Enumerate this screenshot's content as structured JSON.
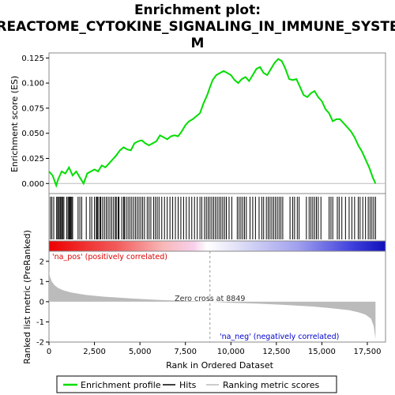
{
  "chart_data": {
    "type": "line",
    "title_lines": [
      "Enrichment plot:",
      "REACTOME_CYTOKINE_SIGNALING_IN_IMMUNE_SYSTE",
      "M"
    ],
    "xlabel": "Rank in Ordered Dataset",
    "xlim": [
      0,
      18500
    ],
    "x_ticks": [
      0,
      2500,
      5000,
      7500,
      10000,
      12500,
      15000,
      17500
    ],
    "x_tick_labels": [
      "0",
      "2,500",
      "5,000",
      "7,500",
      "10,000",
      "12,500",
      "15,000",
      "17,500"
    ],
    "es_panel": {
      "ylabel": "Enrichment score (ES)",
      "ylim": [
        -0.01,
        0.13
      ],
      "y_ticks": [
        0.0,
        0.025,
        0.05,
        0.075,
        0.1,
        0.125
      ],
      "y_tick_labels": [
        "0.000",
        "0.025",
        "0.050",
        "0.075",
        "0.100",
        "0.125"
      ],
      "series": [
        {
          "color": "#00dd00",
          "x": [
            0,
            200,
            400,
            500,
            700,
            900,
            1100,
            1300,
            1500,
            1700,
            1900,
            2100,
            2300,
            2500,
            2700,
            2900,
            3100,
            3300,
            3500,
            3700,
            3900,
            4100,
            4300,
            4500,
            4700,
            4900,
            5100,
            5300,
            5500,
            5700,
            5900,
            6100,
            6300,
            6500,
            6700,
            6900,
            7100,
            7300,
            7500,
            7700,
            7900,
            8100,
            8300,
            8500,
            8700,
            8850,
            9000,
            9200,
            9400,
            9600,
            9800,
            10000,
            10200,
            10400,
            10600,
            10800,
            11000,
            11200,
            11400,
            11600,
            11800,
            12000,
            12200,
            12400,
            12600,
            12800,
            13000,
            13200,
            13400,
            13600,
            13800,
            14000,
            14200,
            14400,
            14600,
            14800,
            15000,
            15200,
            15400,
            15600,
            15800,
            16000,
            16200,
            16400,
            16600,
            16800,
            17000,
            17200,
            17400,
            17600,
            17800,
            17950
          ],
          "y": [
            0.012,
            0.008,
            -0.002,
            0.004,
            0.012,
            0.01,
            0.016,
            0.008,
            0.012,
            0.006,
            0.0,
            0.01,
            0.012,
            0.014,
            0.012,
            0.018,
            0.016,
            0.02,
            0.024,
            0.028,
            0.033,
            0.036,
            0.034,
            0.033,
            0.04,
            0.042,
            0.043,
            0.04,
            0.038,
            0.04,
            0.042,
            0.048,
            0.046,
            0.044,
            0.047,
            0.048,
            0.047,
            0.052,
            0.058,
            0.062,
            0.064,
            0.067,
            0.07,
            0.08,
            0.088,
            0.096,
            0.103,
            0.108,
            0.11,
            0.112,
            0.11,
            0.108,
            0.103,
            0.1,
            0.104,
            0.106,
            0.102,
            0.108,
            0.114,
            0.116,
            0.11,
            0.108,
            0.114,
            0.12,
            0.124,
            0.122,
            0.114,
            0.104,
            0.103,
            0.104,
            0.096,
            0.088,
            0.086,
            0.09,
            0.092,
            0.086,
            0.082,
            0.074,
            0.07,
            0.062,
            0.064,
            0.064,
            0.06,
            0.056,
            0.052,
            0.046,
            0.038,
            0.032,
            0.024,
            0.016,
            0.006,
            0.0
          ]
        }
      ]
    },
    "ranked_panel": {
      "ylabel": "Ranked list metric (PreRanked)",
      "ylim": [
        -2,
        2.5
      ],
      "y_ticks": [
        -2,
        -1,
        0,
        1,
        2
      ],
      "y_tick_labels": [
        "-2",
        "-1",
        "0",
        "1",
        "2"
      ],
      "metric_x": [
        0,
        50,
        150,
        300,
        500,
        800,
        1200,
        2000,
        3000,
        4500,
        6000,
        7500,
        8849,
        10000,
        11500,
        13000,
        14500,
        15500,
        16500,
        17000,
        17400,
        17700,
        17850,
        17950
      ],
      "metric_y": [
        1.5,
        1.25,
        1.0,
        0.82,
        0.68,
        0.56,
        0.46,
        0.34,
        0.25,
        0.16,
        0.09,
        0.04,
        0.0,
        -0.05,
        -0.1,
        -0.16,
        -0.24,
        -0.32,
        -0.42,
        -0.52,
        -0.64,
        -0.84,
        -1.2,
        -1.85
      ],
      "zero_cross_label": "Zero cross at 8849",
      "zero_cross_x": 8849,
      "pos_label": "'na_pos' (positively correlated)",
      "neg_label": "'na_neg' (negatively correlated)"
    },
    "hits": [
      80,
      160,
      260,
      420,
      480,
      530,
      600,
      650,
      700,
      760,
      820,
      980,
      1050,
      1100,
      1150,
      1200,
      1250,
      1300,
      1600,
      1700,
      1800,
      2050,
      2250,
      2350,
      2500,
      2600,
      2650,
      2700,
      2800,
      2850,
      2950,
      3050,
      3150,
      3250,
      3350,
      3450,
      3550,
      3650,
      3700,
      3800,
      3850,
      4000,
      4100,
      4150,
      4250,
      4350,
      4450,
      4550,
      4650,
      4750,
      4850,
      4950,
      5050,
      5150,
      5250,
      5400,
      5500,
      5600,
      5750,
      5850,
      5950,
      6050,
      6200,
      6350,
      6500,
      6650,
      6800,
      6950,
      7100,
      7250,
      7400,
      7550,
      7700,
      7850,
      8000,
      8150,
      8300,
      8400,
      8550,
      8650,
      8750,
      8850,
      8950,
      9050,
      9150,
      9250,
      9350,
      9450,
      9550,
      9650,
      9750,
      9900,
      10050,
      10350,
      10450,
      10550,
      10650,
      10750,
      10850,
      11050,
      11200,
      11350,
      11550,
      11700,
      11800,
      11950,
      12050,
      12150,
      12250,
      12350,
      12450,
      12550,
      12650,
      12750,
      12850,
      13250,
      13400,
      13500,
      13650,
      13750,
      14150,
      14300,
      14400,
      14500,
      14600,
      14700,
      14800,
      14950,
      15400,
      15500,
      15600,
      15850,
      15950,
      16100,
      16300,
      16500,
      16650,
      16800,
      17000,
      17100,
      17250,
      17400,
      17550,
      17650,
      17750,
      17850,
      17950
    ],
    "legend": [
      {
        "label": "Enrichment profile",
        "color": "#00dd00"
      },
      {
        "label": "Hits",
        "color": "#000000"
      },
      {
        "label": "Ranking metric scores",
        "color": "#bbbbbb"
      }
    ]
  }
}
